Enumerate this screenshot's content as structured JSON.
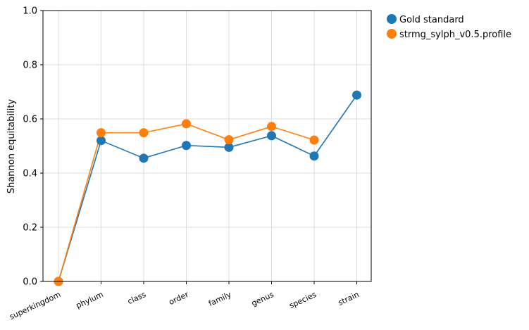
{
  "chart_data": {
    "type": "line",
    "categories": [
      "superkingdom",
      "phylum",
      "class",
      "order",
      "family",
      "genus",
      "species",
      "strain"
    ],
    "ylabel": "Shannon equitability",
    "xlabel": "",
    "ylim": [
      0,
      1.0
    ],
    "yticks": [
      "0.0",
      "0.2",
      "0.4",
      "0.6",
      "0.8",
      "1.0"
    ],
    "grid": true,
    "legend_position": "outside-top-right",
    "series": [
      {
        "name": "Gold standard",
        "color": "#1f77b4",
        "values": [
          0.0,
          0.52,
          0.455,
          0.502,
          0.495,
          0.538,
          0.463,
          0.688
        ]
      },
      {
        "name": "strmg_sylph_v0.5.profile",
        "color": "#ff7f0e",
        "values": [
          0.0,
          0.549,
          0.549,
          0.582,
          0.523,
          0.572,
          0.522,
          null
        ]
      }
    ]
  }
}
